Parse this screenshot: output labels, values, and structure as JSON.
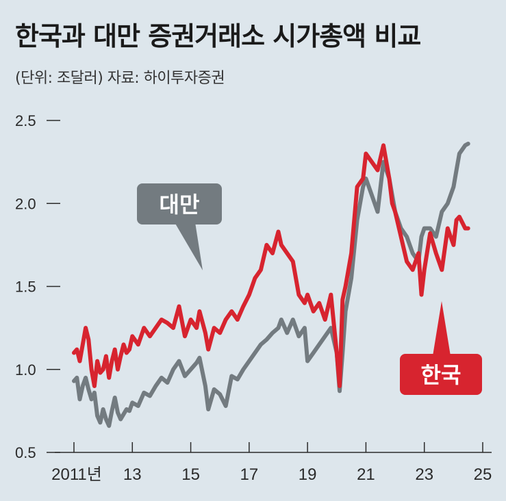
{
  "header": {
    "title": "한국과 대만 증권거래소 시가총액 비교",
    "subtitle": "(단위: 조달러) 자료: 하이투자증권"
  },
  "colors": {
    "korea": "#d7242f",
    "taiwan": "#737b80",
    "background": "#dde6ec"
  },
  "chart_data": {
    "type": "line",
    "title": "한국과 대만 증권거래소 시가총액 비교",
    "ylim": [
      0.5,
      2.5
    ],
    "xlim": [
      2011,
      2025
    ],
    "yticks": [
      "0.5",
      "1.0",
      "1.5",
      "2.0",
      "2.5"
    ],
    "xticks": [
      {
        "value": 2011,
        "label": "2011년"
      },
      {
        "value": 2013,
        "label": "13"
      },
      {
        "value": 2015,
        "label": "15"
      },
      {
        "value": 2017,
        "label": "17"
      },
      {
        "value": 2019,
        "label": "19"
      },
      {
        "value": 2021,
        "label": "21"
      },
      {
        "value": 2023,
        "label": "23"
      },
      {
        "value": 2025,
        "label": "25"
      }
    ],
    "grid": false,
    "series": [
      {
        "name": "대만",
        "color": "#737b80",
        "x": [
          2011.0,
          2011.1,
          2011.2,
          2011.3,
          2011.4,
          2011.5,
          2011.6,
          2011.7,
          2011.8,
          2011.9,
          2012.0,
          2012.1,
          2012.2,
          2012.3,
          2012.4,
          2012.5,
          2012.6,
          2012.7,
          2012.8,
          2012.9,
          2013.0,
          2013.2,
          2013.4,
          2013.6,
          2013.8,
          2014.0,
          2014.2,
          2014.4,
          2014.6,
          2014.8,
          2015.0,
          2015.2,
          2015.3,
          2015.5,
          2015.6,
          2015.8,
          2016.0,
          2016.2,
          2016.4,
          2016.6,
          2016.8,
          2017.0,
          2017.2,
          2017.4,
          2017.6,
          2017.8,
          2018.0,
          2018.1,
          2018.3,
          2018.5,
          2018.7,
          2018.9,
          2019.0,
          2019.2,
          2019.4,
          2019.6,
          2019.8,
          2020.0,
          2020.1,
          2020.2,
          2020.3,
          2020.5,
          2020.7,
          2020.9,
          2021.0,
          2021.2,
          2021.4,
          2021.6,
          2021.8,
          2021.9,
          2022.0,
          2022.2,
          2022.4,
          2022.6,
          2022.8,
          2022.9,
          2023.0,
          2023.2,
          2023.4,
          2023.6,
          2023.8,
          2024.0,
          2024.1,
          2024.2,
          2024.4,
          2024.5
        ],
        "values": [
          0.93,
          0.95,
          0.82,
          0.9,
          0.95,
          0.88,
          0.82,
          0.86,
          0.72,
          0.68,
          0.76,
          0.7,
          0.66,
          0.75,
          0.83,
          0.74,
          0.7,
          0.73,
          0.76,
          0.75,
          0.8,
          0.78,
          0.86,
          0.84,
          0.9,
          0.95,
          0.92,
          1.0,
          1.05,
          0.96,
          1.0,
          1.04,
          1.07,
          0.9,
          0.76,
          0.88,
          0.85,
          0.78,
          0.96,
          0.94,
          1.0,
          1.05,
          1.1,
          1.15,
          1.18,
          1.22,
          1.25,
          1.3,
          1.22,
          1.3,
          1.2,
          1.25,
          1.05,
          1.1,
          1.15,
          1.2,
          1.25,
          1.1,
          0.87,
          1.1,
          1.35,
          1.55,
          1.9,
          2.1,
          2.15,
          2.05,
          1.95,
          2.25,
          2.15,
          2.05,
          1.95,
          1.85,
          1.8,
          1.7,
          1.65,
          1.8,
          1.85,
          1.85,
          1.8,
          1.95,
          2.0,
          2.1,
          2.2,
          2.3,
          2.35,
          2.36
        ]
      },
      {
        "name": "한국",
        "color": "#d7242f",
        "x": [
          2011.0,
          2011.1,
          2011.2,
          2011.3,
          2011.4,
          2011.5,
          2011.6,
          2011.7,
          2011.8,
          2011.9,
          2012.0,
          2012.1,
          2012.2,
          2012.3,
          2012.4,
          2012.5,
          2012.6,
          2012.7,
          2012.8,
          2012.9,
          2013.0,
          2013.2,
          2013.4,
          2013.6,
          2013.8,
          2014.0,
          2014.2,
          2014.4,
          2014.6,
          2014.8,
          2015.0,
          2015.2,
          2015.3,
          2015.5,
          2015.6,
          2015.8,
          2016.0,
          2016.2,
          2016.4,
          2016.6,
          2016.8,
          2017.0,
          2017.2,
          2017.4,
          2017.6,
          2017.8,
          2018.0,
          2018.1,
          2018.3,
          2018.5,
          2018.7,
          2018.9,
          2019.0,
          2019.2,
          2019.4,
          2019.6,
          2019.8,
          2020.0,
          2020.1,
          2020.2,
          2020.3,
          2020.5,
          2020.7,
          2020.9,
          2021.0,
          2021.2,
          2021.4,
          2021.6,
          2021.8,
          2021.9,
          2022.0,
          2022.2,
          2022.4,
          2022.6,
          2022.8,
          2022.9,
          2023.0,
          2023.2,
          2023.4,
          2023.6,
          2023.8,
          2024.0,
          2024.1,
          2024.2,
          2024.4,
          2024.5
        ],
        "values": [
          1.1,
          1.12,
          1.05,
          1.15,
          1.25,
          1.18,
          1.0,
          0.9,
          1.05,
          0.98,
          1.0,
          1.08,
          0.95,
          1.05,
          1.12,
          1.0,
          1.08,
          1.15,
          1.1,
          1.12,
          1.2,
          1.15,
          1.25,
          1.2,
          1.25,
          1.3,
          1.28,
          1.25,
          1.38,
          1.2,
          1.3,
          1.25,
          1.35,
          1.22,
          1.12,
          1.25,
          1.22,
          1.3,
          1.35,
          1.3,
          1.38,
          1.45,
          1.55,
          1.6,
          1.75,
          1.7,
          1.83,
          1.75,
          1.7,
          1.65,
          1.45,
          1.4,
          1.45,
          1.35,
          1.4,
          1.3,
          1.45,
          1.1,
          0.9,
          1.42,
          1.5,
          1.7,
          2.1,
          2.15,
          2.3,
          2.25,
          2.2,
          2.35,
          2.15,
          2.0,
          1.95,
          1.8,
          1.65,
          1.6,
          1.7,
          1.45,
          1.6,
          1.82,
          1.7,
          1.6,
          1.85,
          1.75,
          1.9,
          1.92,
          1.85,
          1.85
        ]
      }
    ],
    "annotations": [
      {
        "series": "대만",
        "text": "대만",
        "box_color": "#737b80"
      },
      {
        "series": "한국",
        "text": "한국",
        "box_color": "#d7242f"
      }
    ]
  }
}
